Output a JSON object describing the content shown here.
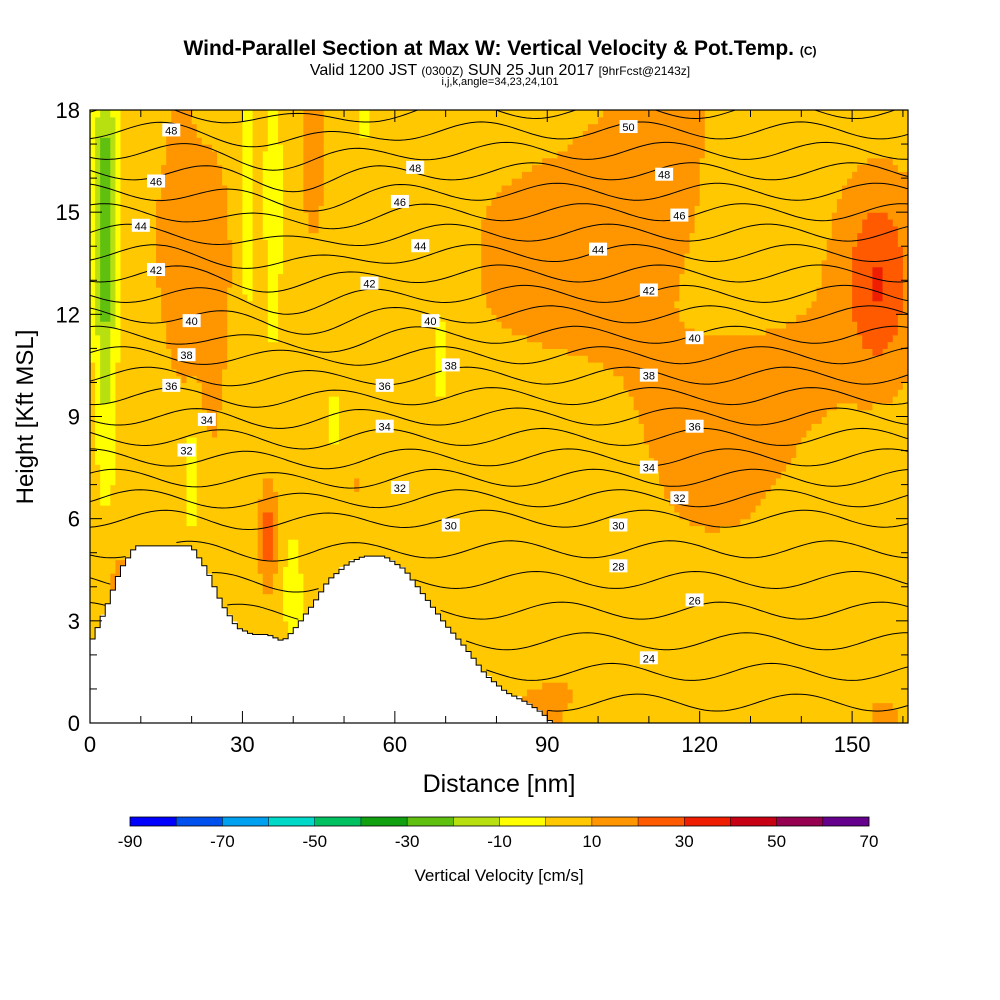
{
  "chart_data": {
    "type": "contour",
    "title": "Wind-Parallel Section at Max W: Vertical Velocity & Pot.Temp.",
    "copyright": "(C)",
    "subtitle_valid": "Valid 1200 JST",
    "subtitle_utc": "(0300Z)",
    "subtitle_date": "SUN 25 Jun 2017",
    "subtitle_fcst": "[9hrFcst@2143z]",
    "section_info": "i,j,k,angle=34,23,24,101",
    "xlabel": "Distance [nm]",
    "ylabel": "Height [Kft MSL]",
    "xlim": [
      0,
      161
    ],
    "ylim": [
      0,
      18
    ],
    "xticks": [
      0,
      30,
      60,
      90,
      120,
      150
    ],
    "yticks": [
      0,
      3,
      6,
      9,
      12,
      15,
      18
    ],
    "colorbar": {
      "label": "Vertical Velocity [cm/s]",
      "ticks": [
        "-90",
        "-70",
        "-50",
        "-30",
        "-10",
        "10",
        "30",
        "50",
        "70"
      ],
      "colors": [
        "#0000ff",
        "#0050f0",
        "#00a0f0",
        "#00d8c8",
        "#00c060",
        "#10a010",
        "#60c010",
        "#b8e010",
        "#ffff00",
        "#ffc800",
        "#ff9600",
        "#ff5a00",
        "#f01e00",
        "#c80014",
        "#960050",
        "#64008c"
      ]
    },
    "theta_contour_labels": [
      {
        "x": 16,
        "y": 17.4,
        "label": "48"
      },
      {
        "x": 13,
        "y": 15.9,
        "label": "46"
      },
      {
        "x": 10,
        "y": 14.6,
        "label": "44"
      },
      {
        "x": 13,
        "y": 13.3,
        "label": "42"
      },
      {
        "x": 20,
        "y": 11.8,
        "label": "40"
      },
      {
        "x": 19,
        "y": 10.8,
        "label": "38"
      },
      {
        "x": 16,
        "y": 9.9,
        "label": "36"
      },
      {
        "x": 23,
        "y": 8.9,
        "label": "34"
      },
      {
        "x": 19,
        "y": 8.0,
        "label": "32"
      },
      {
        "x": 64,
        "y": 16.3,
        "label": "48"
      },
      {
        "x": 61,
        "y": 15.3,
        "label": "46"
      },
      {
        "x": 65,
        "y": 14.0,
        "label": "44"
      },
      {
        "x": 55,
        "y": 12.9,
        "label": "42"
      },
      {
        "x": 67,
        "y": 11.8,
        "label": "40"
      },
      {
        "x": 71,
        "y": 10.5,
        "label": "38"
      },
      {
        "x": 58,
        "y": 9.9,
        "label": "36"
      },
      {
        "x": 58,
        "y": 8.7,
        "label": "34"
      },
      {
        "x": 61,
        "y": 6.9,
        "label": "32"
      },
      {
        "x": 71,
        "y": 5.8,
        "label": "30"
      },
      {
        "x": 106,
        "y": 17.5,
        "label": "50"
      },
      {
        "x": 113,
        "y": 16.1,
        "label": "48"
      },
      {
        "x": 116,
        "y": 14.9,
        "label": "46"
      },
      {
        "x": 100,
        "y": 13.9,
        "label": "44"
      },
      {
        "x": 110,
        "y": 12.7,
        "label": "42"
      },
      {
        "x": 119,
        "y": 11.3,
        "label": "40"
      },
      {
        "x": 110,
        "y": 10.2,
        "label": "38"
      },
      {
        "x": 119,
        "y": 8.7,
        "label": "36"
      },
      {
        "x": 110,
        "y": 7.5,
        "label": "34"
      },
      {
        "x": 116,
        "y": 6.6,
        "label": "32"
      },
      {
        "x": 104,
        "y": 5.8,
        "label": "30"
      },
      {
        "x": 104,
        "y": 4.6,
        "label": "28"
      },
      {
        "x": 119,
        "y": 3.6,
        "label": "26"
      },
      {
        "x": 110,
        "y": 1.9,
        "label": "24"
      }
    ],
    "terrain_kft": [
      [
        0,
        2.3
      ],
      [
        3,
        3.3
      ],
      [
        6,
        4.5
      ],
      [
        9,
        5.2
      ],
      [
        12,
        5.2
      ],
      [
        16,
        5.2
      ],
      [
        20,
        5.2
      ],
      [
        23,
        4.5
      ],
      [
        26,
        3.5
      ],
      [
        29,
        2.8
      ],
      [
        32,
        2.6
      ],
      [
        35,
        2.6
      ],
      [
        38,
        2.4
      ],
      [
        40,
        2.7
      ],
      [
        44,
        3.5
      ],
      [
        47,
        4.2
      ],
      [
        51,
        4.7
      ],
      [
        54,
        4.9
      ],
      [
        58,
        4.9
      ],
      [
        62,
        4.5
      ],
      [
        66,
        3.7
      ],
      [
        70,
        2.9
      ],
      [
        74,
        2.2
      ],
      [
        78,
        1.4
      ],
      [
        82,
        0.9
      ],
      [
        86,
        0.6
      ],
      [
        89,
        0.3
      ],
      [
        91,
        0
      ]
    ],
    "notable_features": [
      {
        "type": "updraft",
        "x": 35,
        "y": 5.5,
        "w_cms": 25
      },
      {
        "type": "updraft",
        "x": 44,
        "y": 17.0,
        "w_cms": 20
      },
      {
        "type": "updraft",
        "x": 155,
        "y": 13.0,
        "w_cms": 20
      },
      {
        "type": "downdraft",
        "x": 3,
        "y": 14.5,
        "w_cms": -30
      },
      {
        "type": "downdraft",
        "x": 36,
        "y": 15.5,
        "w_cms": -15
      }
    ]
  }
}
